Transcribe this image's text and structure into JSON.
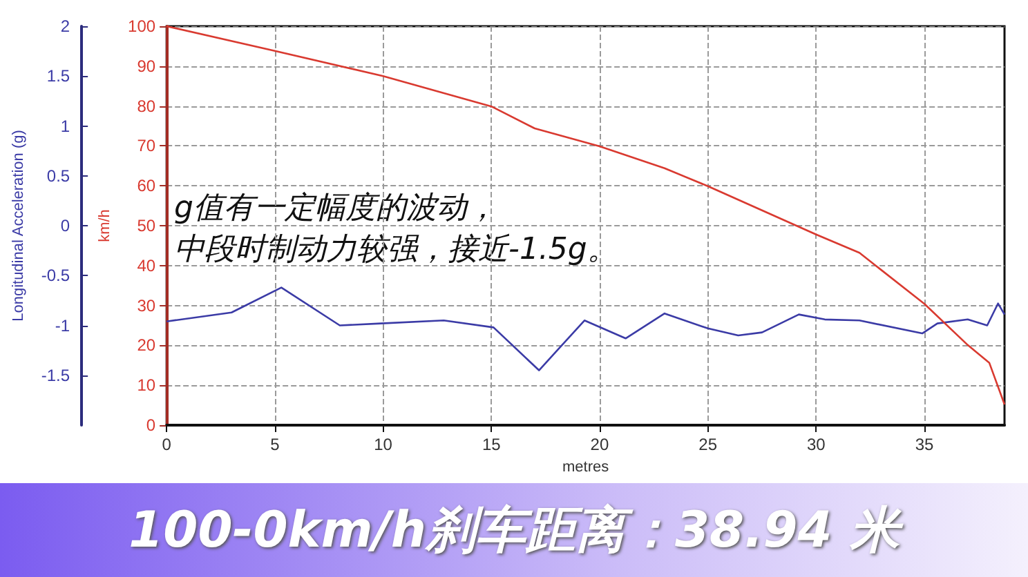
{
  "chart_data": {
    "type": "line",
    "title": "100-0km/h刹车距离：38.94 米",
    "xlabel": "metres",
    "ylabel": "km/h",
    "y2label": "Longitudinal Acceleration (g)",
    "annotations": [
      "g值有一定幅度的波动，",
      "中段时制动力较强，接近-1.5g。"
    ],
    "xlim": [
      0,
      38.7
    ],
    "xticks": [
      0,
      5,
      10,
      15,
      20,
      25,
      30,
      35
    ],
    "ylim": [
      0,
      100
    ],
    "yticks": [
      0,
      10,
      20,
      30,
      40,
      50,
      60,
      70,
      80,
      90,
      100
    ],
    "y2lim": [
      -2,
      2
    ],
    "y2ticks": [
      -1.5,
      -1,
      -0.5,
      0,
      0.5,
      1,
      1.5,
      2
    ],
    "grid": true,
    "marker": "none",
    "line_style": "solid",
    "series": [
      {
        "color": "#3b3ba6",
        "axis": "y2",
        "x": [
          0,
          3,
          5.3,
          8,
          9.9,
          12.8,
          15.1,
          17.2,
          19.3,
          21.2,
          23,
          25,
          26.4,
          27.5,
          29.2,
          30.4,
          32,
          34.9,
          35.6,
          37,
          37.9,
          38.4,
          38.7
        ],
        "values": [
          -0.96,
          -0.87,
          -0.62,
          -1,
          -0.98,
          -0.95,
          -1.02,
          -1.45,
          -0.95,
          -1.13,
          -0.88,
          -1.03,
          -1.1,
          -1.07,
          -0.89,
          -0.94,
          -0.95,
          -1.08,
          -0.98,
          -0.94,
          -1,
          -0.78,
          -0.89
        ]
      },
      {
        "color": "#d93a30",
        "x": [
          0,
          5,
          10,
          15,
          17,
          20,
          23,
          25,
          30,
          32,
          35,
          37,
          38,
          38.7
        ],
        "values": [
          100,
          93.8,
          87.5,
          79.9,
          74.4,
          69.9,
          64.4,
          59.9,
          47.8,
          43.2,
          30.4,
          20.1,
          15.6,
          5.2
        ]
      }
    ]
  }
}
